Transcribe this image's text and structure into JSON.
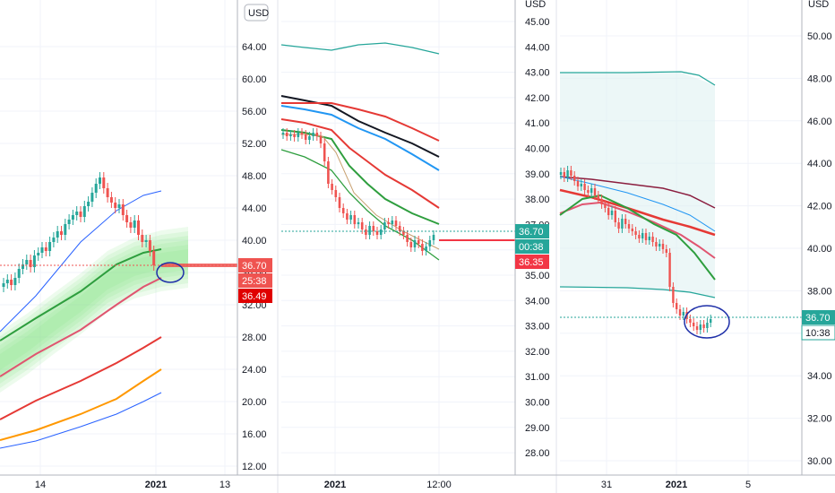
{
  "chart_data": [
    {
      "type": "line",
      "panel": "left",
      "currency": "USD",
      "y_ticks": [
        "64.00",
        "60.00",
        "56.00",
        "52.00",
        "48.00",
        "44.00",
        "40.00",
        "36.00",
        "32.00",
        "28.00",
        "24.00",
        "20.00",
        "16.00",
        "12.00"
      ],
      "x_ticks": [
        {
          "label": "14",
          "bold": false
        },
        {
          "label": "2021",
          "bold": true
        },
        {
          "label": "13",
          "bold": false
        }
      ],
      "ylim": [
        12,
        66
      ],
      "last_price": "36.70",
      "countdown": "25:38",
      "prev_price": "36.49",
      "colors": {
        "up": "#26a69a",
        "down": "#ef5350",
        "price_badge": "#ef5350",
        "ribbon": "#7ee07e",
        "ma_green": "#2e9e3e",
        "ma_pink": "#e05570",
        "ma_red": "#e53935",
        "ma_orange": "#ff9800",
        "ma_blue": "#2962ff"
      }
    },
    {
      "type": "line",
      "panel": "middle",
      "currency": "USD",
      "y_ticks": [
        "45.00",
        "44.00",
        "43.00",
        "42.00",
        "41.00",
        "40.00",
        "39.00",
        "38.00",
        "37.00",
        "36.00",
        "35.00",
        "34.00",
        "33.00",
        "32.00",
        "31.00",
        "30.00",
        "29.00",
        "28.00"
      ],
      "x_ticks": [
        {
          "label": "2021",
          "bold": true
        },
        {
          "label": "12:00",
          "bold": false
        }
      ],
      "ylim": [
        27.4,
        45.4
      ],
      "last_price": "36.70",
      "countdown": "00:38",
      "prev_price": "36.35",
      "colors": {
        "price_badge": "#26a69a",
        "prev_badge": "#f23645",
        "ma_black": "#131722",
        "ma_red": "#e53935",
        "ma_blue": "#2196f3",
        "ma_green": "#2e9e3e",
        "band": "#26a69a"
      }
    },
    {
      "type": "line",
      "panel": "right",
      "currency": "USD",
      "y_ticks": [
        "50.00",
        "48.00",
        "46.00",
        "44.00",
        "42.00",
        "40.00",
        "38.00",
        "36.00",
        "34.00",
        "32.00",
        "30.00"
      ],
      "x_ticks": [
        {
          "label": "31",
          "bold": false
        },
        {
          "label": "2021",
          "bold": true
        },
        {
          "label": "5",
          "bold": false
        }
      ],
      "ylim": [
        29.6,
        50.4
      ],
      "last_price": "36.70",
      "countdown": "10:38",
      "colors": {
        "price_badge": "#26a69a",
        "ma_brown": "#8b1e3f",
        "ma_red": "#e53935",
        "ma_blue": "#2196f3",
        "ma_pink": "#e05570",
        "ma_green": "#2e9e3e",
        "band": "#26a69a",
        "band_fill": "#e0f2f1"
      }
    }
  ]
}
